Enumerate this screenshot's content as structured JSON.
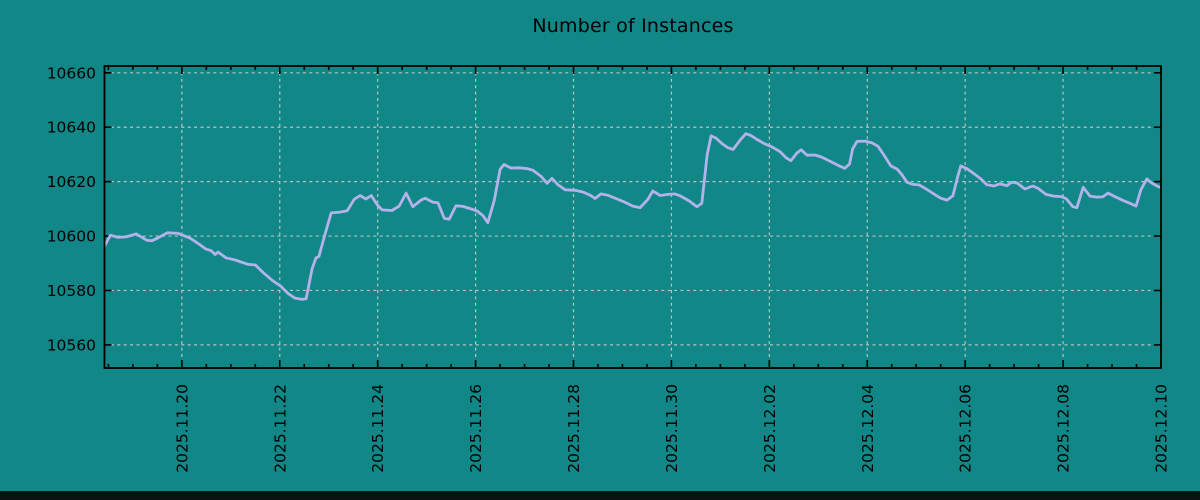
{
  "title": "Number of Instances",
  "chart_data": {
    "type": "line",
    "title": "Number of Instances",
    "x_unit": "days relative to 2025-11-20 00:00",
    "xlim": [
      -1.58,
      20.0
    ],
    "ylim": [
      10551.5,
      10662.5
    ],
    "yticks": [
      10560,
      10580,
      10600,
      10620,
      10640,
      10660
    ],
    "x_tick_offsets": [
      0,
      2,
      4,
      6,
      8,
      10,
      12,
      14,
      16,
      18,
      20
    ],
    "x_tick_labels": [
      "2025.11.20",
      "2025.11.22",
      "2025.11.24",
      "2025.11.26",
      "2025.11.28",
      "2025.11.30",
      "2025.12.02",
      "2025.12.04",
      "2025.12.06",
      "2025.12.08",
      "2025.12.10"
    ],
    "x_minor_tick_step_days": 0.5,
    "grid": "dashed, both axes, at major ticks",
    "legend": "none",
    "colors": {
      "background": "#118787",
      "line": "#b4b2eb",
      "grid": "#c9c9c9",
      "axis": "#000000",
      "text": "#000000",
      "bottom_bar": "#0a1111"
    },
    "series": [
      {
        "name": "instances",
        "points": [
          [
            -1.58,
            10596.3
          ],
          [
            -1.46,
            10600.3
          ],
          [
            -1.3,
            10599.5
          ],
          [
            -1.14,
            10599.7
          ],
          [
            -0.93,
            10600.8
          ],
          [
            -0.71,
            10598.4
          ],
          [
            -0.61,
            10598.3
          ],
          [
            -0.48,
            10599.4
          ],
          [
            -0.3,
            10601.2
          ],
          [
            -0.08,
            10601.0
          ],
          [
            0.17,
            10599.2
          ],
          [
            0.33,
            10597.3
          ],
          [
            0.48,
            10595.3
          ],
          [
            0.6,
            10594.6
          ],
          [
            0.68,
            10593.2
          ],
          [
            0.74,
            10594.1
          ],
          [
            0.9,
            10592.0
          ],
          [
            1.09,
            10591.2
          ],
          [
            1.35,
            10589.6
          ],
          [
            1.5,
            10589.4
          ],
          [
            1.66,
            10586.6
          ],
          [
            1.84,
            10583.8
          ],
          [
            2.01,
            10581.7
          ],
          [
            2.17,
            10578.9
          ],
          [
            2.31,
            10577.2
          ],
          [
            2.46,
            10576.7
          ],
          [
            2.54,
            10577.0
          ],
          [
            2.66,
            10588.0
          ],
          [
            2.74,
            10592.0
          ],
          [
            2.8,
            10592.5
          ],
          [
            2.93,
            10601.0
          ],
          [
            3.05,
            10608.5
          ],
          [
            3.23,
            10608.8
          ],
          [
            3.38,
            10609.3
          ],
          [
            3.52,
            10613.5
          ],
          [
            3.64,
            10614.9
          ],
          [
            3.76,
            10613.6
          ],
          [
            3.87,
            10614.9
          ],
          [
            3.99,
            10611.5
          ],
          [
            4.09,
            10609.6
          ],
          [
            4.29,
            10609.4
          ],
          [
            4.44,
            10611.0
          ],
          [
            4.58,
            10615.8
          ],
          [
            4.72,
            10610.8
          ],
          [
            4.89,
            10613.3
          ],
          [
            4.97,
            10613.9
          ],
          [
            5.13,
            10612.4
          ],
          [
            5.23,
            10612.3
          ],
          [
            5.36,
            10606.5
          ],
          [
            5.46,
            10606.2
          ],
          [
            5.6,
            10611.1
          ],
          [
            5.74,
            10610.9
          ],
          [
            5.89,
            10610.1
          ],
          [
            6.03,
            10609.2
          ],
          [
            6.15,
            10607.5
          ],
          [
            6.25,
            10604.9
          ],
          [
            6.38,
            10613.0
          ],
          [
            6.5,
            10624.5
          ],
          [
            6.58,
            10626.3
          ],
          [
            6.72,
            10625.0
          ],
          [
            6.89,
            10625.1
          ],
          [
            7.05,
            10624.8
          ],
          [
            7.17,
            10624.2
          ],
          [
            7.34,
            10621.9
          ],
          [
            7.46,
            10619.4
          ],
          [
            7.56,
            10621.2
          ],
          [
            7.68,
            10618.9
          ],
          [
            7.83,
            10617.0
          ],
          [
            8.03,
            10616.8
          ],
          [
            8.19,
            10616.2
          ],
          [
            8.34,
            10615.0
          ],
          [
            8.44,
            10613.8
          ],
          [
            8.56,
            10615.5
          ],
          [
            8.7,
            10615.0
          ],
          [
            8.89,
            10613.6
          ],
          [
            9.03,
            10612.6
          ],
          [
            9.21,
            10611.0
          ],
          [
            9.36,
            10610.4
          ],
          [
            9.52,
            10613.5
          ],
          [
            9.62,
            10616.6
          ],
          [
            9.77,
            10614.9
          ],
          [
            9.93,
            10615.3
          ],
          [
            10.07,
            10615.5
          ],
          [
            10.19,
            10614.7
          ],
          [
            10.36,
            10612.9
          ],
          [
            10.52,
            10610.8
          ],
          [
            10.62,
            10612.0
          ],
          [
            10.73,
            10630.0
          ],
          [
            10.81,
            10636.8
          ],
          [
            10.91,
            10636.0
          ],
          [
            11.03,
            10634.0
          ],
          [
            11.15,
            10632.5
          ],
          [
            11.26,
            10631.8
          ],
          [
            11.4,
            10635.2
          ],
          [
            11.52,
            10637.6
          ],
          [
            11.62,
            10637.0
          ],
          [
            11.75,
            10635.5
          ],
          [
            11.89,
            10634.0
          ],
          [
            12.05,
            10632.8
          ],
          [
            12.22,
            10631.0
          ],
          [
            12.34,
            10628.8
          ],
          [
            12.44,
            10627.7
          ],
          [
            12.56,
            10630.5
          ],
          [
            12.65,
            10631.7
          ],
          [
            12.77,
            10629.7
          ],
          [
            12.93,
            10629.8
          ],
          [
            13.07,
            10629.0
          ],
          [
            13.24,
            10627.5
          ],
          [
            13.4,
            10626.0
          ],
          [
            13.54,
            10624.9
          ],
          [
            13.64,
            10626.5
          ],
          [
            13.7,
            10632.0
          ],
          [
            13.79,
            10634.8
          ],
          [
            13.95,
            10634.9
          ],
          [
            14.09,
            10634.3
          ],
          [
            14.22,
            10633.0
          ],
          [
            14.34,
            10629.8
          ],
          [
            14.48,
            10625.8
          ],
          [
            14.61,
            10624.6
          ],
          [
            14.71,
            10622.5
          ],
          [
            14.81,
            10619.8
          ],
          [
            14.93,
            10619.0
          ],
          [
            15.06,
            10618.8
          ],
          [
            15.22,
            10617.1
          ],
          [
            15.36,
            10615.5
          ],
          [
            15.5,
            10613.9
          ],
          [
            15.63,
            10613.2
          ],
          [
            15.75,
            10614.8
          ],
          [
            15.85,
            10622.0
          ],
          [
            15.91,
            10625.8
          ],
          [
            16.04,
            10624.7
          ],
          [
            16.18,
            10622.9
          ],
          [
            16.32,
            10621.0
          ],
          [
            16.44,
            10618.9
          ],
          [
            16.59,
            10618.4
          ],
          [
            16.71,
            10619.2
          ],
          [
            16.85,
            10618.5
          ],
          [
            16.95,
            10619.8
          ],
          [
            17.06,
            10619.5
          ],
          [
            17.22,
            10617.3
          ],
          [
            17.38,
            10618.4
          ],
          [
            17.49,
            10617.5
          ],
          [
            17.65,
            10615.3
          ],
          [
            17.81,
            10614.7
          ],
          [
            17.96,
            10614.5
          ],
          [
            18.06,
            10613.8
          ],
          [
            18.2,
            10610.8
          ],
          [
            18.28,
            10610.4
          ],
          [
            18.41,
            10617.9
          ],
          [
            18.55,
            10614.7
          ],
          [
            18.69,
            10614.3
          ],
          [
            18.81,
            10614.4
          ],
          [
            18.92,
            10615.8
          ],
          [
            19.06,
            10614.5
          ],
          [
            19.2,
            10613.3
          ],
          [
            19.37,
            10612.0
          ],
          [
            19.49,
            10611.0
          ],
          [
            19.59,
            10617.0
          ],
          [
            19.71,
            10621.0
          ],
          [
            19.81,
            10619.5
          ],
          [
            19.94,
            10618.2
          ],
          [
            20.0,
            10617.8
          ]
        ]
      }
    ]
  }
}
